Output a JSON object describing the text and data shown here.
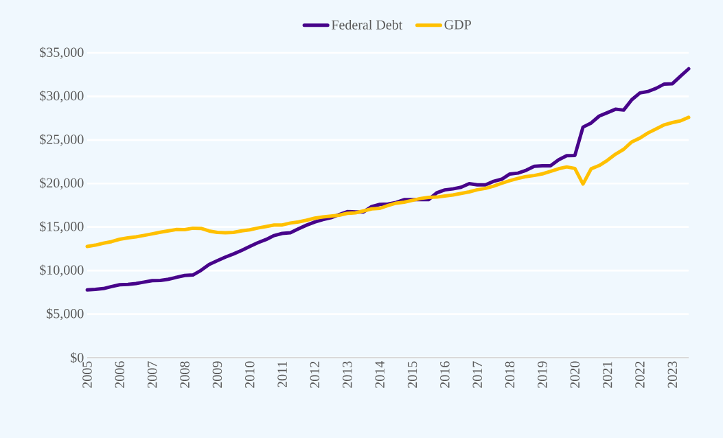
{
  "chart_data": {
    "type": "line",
    "categories": [
      "2005",
      null,
      null,
      null,
      "2006",
      null,
      null,
      null,
      "2007",
      null,
      null,
      null,
      "2008",
      null,
      null,
      null,
      "2009",
      null,
      null,
      null,
      "2010",
      null,
      null,
      null,
      "2011",
      null,
      null,
      null,
      "2012",
      null,
      null,
      null,
      "2013",
      null,
      null,
      null,
      "2014",
      null,
      null,
      null,
      "2015",
      null,
      null,
      null,
      "2016",
      null,
      null,
      null,
      "2017",
      null,
      null,
      null,
      "2018",
      null,
      null,
      null,
      "2019",
      null,
      null,
      null,
      "2020",
      null,
      null,
      null,
      "2021",
      null,
      null,
      null,
      "2022",
      null,
      null,
      null,
      "2023",
      null,
      null
    ],
    "series": [
      {
        "name": "Federal Debt",
        "color": "#47048a",
        "values": [
          7777,
          7837,
          7933,
          8170,
          8371,
          8420,
          8507,
          8680,
          8849,
          8867,
          9008,
          9229,
          9437,
          9492,
          10025,
          10700,
          11127,
          11545,
          11910,
          12311,
          12773,
          13202,
          13562,
          14025,
          14270,
          14343,
          14790,
          15223,
          15582,
          15856,
          16066,
          16433,
          16771,
          16739,
          16738,
          17352,
          17601,
          17633,
          17824,
          18141,
          18152,
          18152,
          18151,
          18922,
          19264,
          19382,
          19573,
          19977,
          19847,
          19845,
          20245,
          20493,
          21090,
          21195,
          21516,
          21974,
          22028,
          22023,
          22719,
          23201,
          23224,
          26477,
          26946,
          27748,
          28133,
          28529,
          28428,
          29617,
          30401,
          30568,
          30929,
          31420,
          31458,
          32332,
          33167
        ]
      },
      {
        "name": "GDP",
        "color": "#ffc000",
        "values": [
          12767,
          12922,
          13143,
          13324,
          13599,
          13753,
          13871,
          14039,
          14216,
          14402,
          14565,
          14715,
          14707,
          14866,
          14844,
          14549,
          14384,
          14341,
          14385,
          14566,
          14681,
          14889,
          15058,
          15231,
          15239,
          15461,
          15588,
          15785,
          16019,
          16152,
          16257,
          16358,
          16570,
          16637,
          16849,
          17083,
          17145,
          17462,
          17744,
          17853,
          18064,
          18279,
          18402,
          18436,
          18566,
          18679,
          18862,
          19034,
          19281,
          19438,
          19692,
          20038,
          20328,
          20580,
          20798,
          20918,
          21105,
          21385,
          21694,
          21903,
          21727,
          19935,
          21684,
          22068,
          22657,
          23368,
          23922,
          24777,
          25215,
          25806,
          26272,
          26734,
          27000,
          27200,
          27600
        ]
      }
    ],
    "ylim": [
      0,
      35000
    ],
    "yticks": [
      {
        "value": 0,
        "label": "$0"
      },
      {
        "value": 5000,
        "label": "$5,000"
      },
      {
        "value": 10000,
        "label": "$10,000"
      },
      {
        "value": 15000,
        "label": "$15,000"
      },
      {
        "value": 20000,
        "label": "$20,000"
      },
      {
        "value": 25000,
        "label": "$25,000"
      },
      {
        "value": 30000,
        "label": "$30,000"
      },
      {
        "value": 35000,
        "label": "$35,000"
      }
    ],
    "grid": "y",
    "legend": "top",
    "marker": "none",
    "line_style": "solid"
  }
}
